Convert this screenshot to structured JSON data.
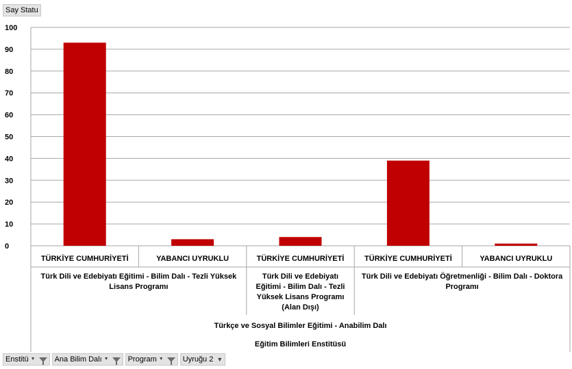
{
  "value_field": "Say Statu",
  "filters": [
    {
      "label": "Enstitü",
      "icon": "filter-icon"
    },
    {
      "label": "Ana Bilim Dalı",
      "icon": "filter-icon"
    },
    {
      "label": "Program",
      "icon": "filter-icon"
    },
    {
      "label": "Uyruğu 2",
      "icon": "chevron-down-icon"
    }
  ],
  "colors": {
    "bar": "#c00000",
    "grid": "#a6a6a6"
  },
  "chart_data": {
    "type": "bar",
    "ylim": [
      0,
      100
    ],
    "yticks": [
      0,
      10,
      20,
      30,
      40,
      50,
      60,
      70,
      80,
      90,
      100
    ],
    "grid": true,
    "series": [
      {
        "values": [
          93,
          3,
          4,
          39,
          1
        ]
      }
    ],
    "categories": [
      "TÜRKİYE CUMHURİYETİ",
      "YABANCI UYRUKLU",
      "TÜRKİYE CUMHURİYETİ",
      "TÜRKİYE CUMHURİYETİ",
      "YABANCI UYRUKLU"
    ],
    "programs": [
      {
        "lines": [
          "Türk Dili ve Edebiyatı Eğitimi - Bilim Dalı - Tezli Yüksek",
          "Lisans Programı"
        ],
        "span": [
          0,
          1
        ]
      },
      {
        "lines": [
          "Türk Dili ve Edebiyatı",
          "Eğitimi - Bilim Dalı - Tezli",
          "Yüksek Lisans Programı",
          "(Alan Dışı)"
        ],
        "span": [
          2,
          2
        ]
      },
      {
        "lines": [
          "Türk Dili ve Edebiyatı Öğretmenliği - Bilim Dalı - Doktora",
          "Programı"
        ],
        "span": [
          3,
          4
        ]
      }
    ],
    "department": "Türkçe ve Sosyal Bilimler Eğitimi - Anabilim Dalı",
    "institute": "Eğitim Bilimleri Enstitüsü"
  }
}
